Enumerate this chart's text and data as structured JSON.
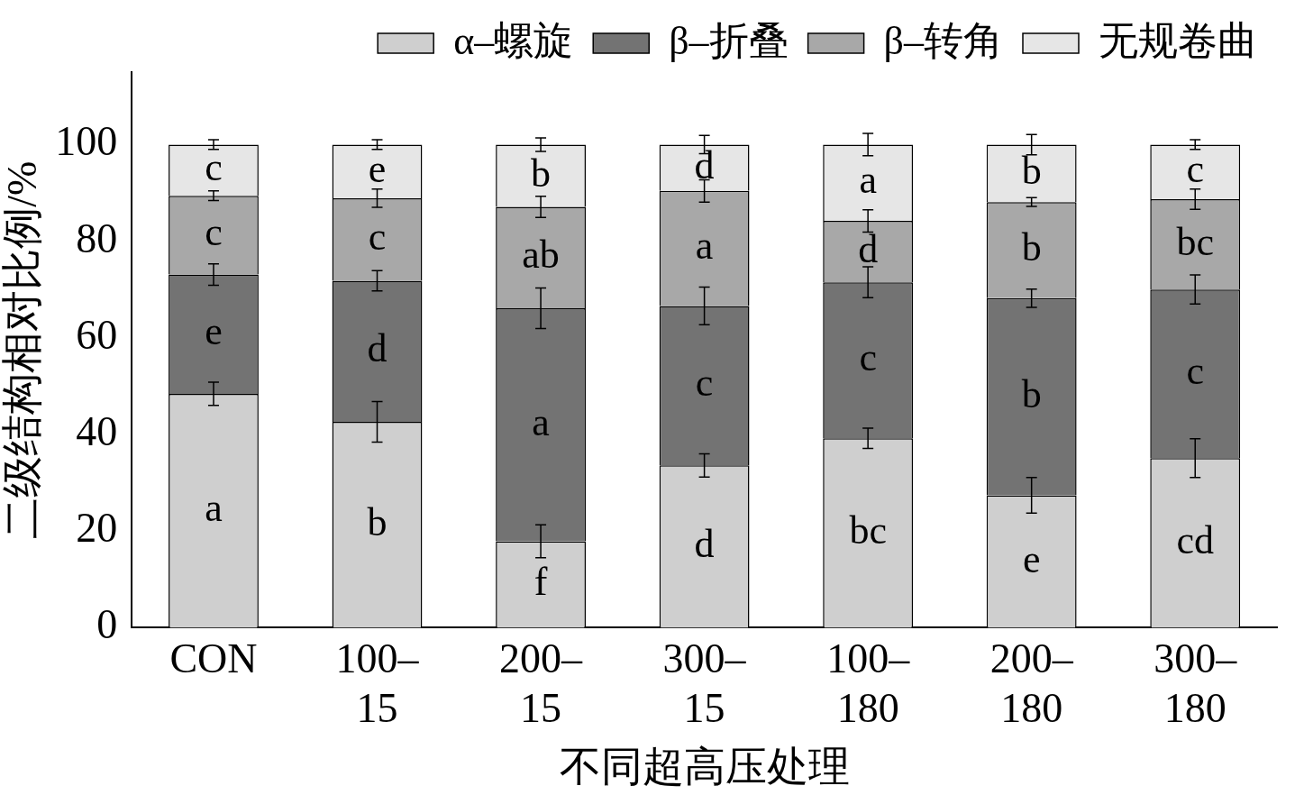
{
  "chart_data": {
    "type": "bar",
    "stacked": true,
    "xlabel": "不同超高压处理",
    "ylabel": "二级结构相对比例/%",
    "categories": [
      "CON",
      "100–15",
      "200–15",
      "300–15",
      "100–180",
      "200–180",
      "300–180"
    ],
    "ylim": [
      0,
      115
    ],
    "yticks": [
      0,
      20,
      40,
      60,
      80,
      100
    ],
    "grid": false,
    "legend": "top",
    "series": [
      {
        "name": "α–螺旋",
        "color": "#cfcfcf",
        "values": [
          48.4,
          42.6,
          17.9,
          33.6,
          39.2,
          27.4,
          35.1
        ],
        "errors": [
          2.4,
          4.2,
          3.4,
          2.4,
          2.1,
          3.7,
          4.0
        ],
        "value_labels": [
          "a",
          "b",
          "f",
          "d",
          "bc",
          "e",
          "cd"
        ]
      },
      {
        "name": "β–折叠",
        "color": "#737373",
        "values": [
          24.7,
          29.2,
          48.2,
          33.0,
          32.3,
          40.8,
          34.9
        ],
        "errors": [
          2.2,
          2.1,
          4.2,
          3.9,
          3.2,
          1.9,
          3.0
        ],
        "value_labels": [
          "e",
          "d",
          "a",
          "c",
          "c",
          "b",
          "c"
        ]
      },
      {
        "name": "β–转角",
        "color": "#a8a8a8",
        "values": [
          16.3,
          17.1,
          21.0,
          23.8,
          12.7,
          19.9,
          18.7
        ],
        "errors": [
          1.0,
          1.9,
          2.2,
          2.3,
          2.3,
          0.9,
          2.1
        ],
        "value_labels": [
          "c",
          "c",
          "ab",
          "a",
          "d",
          "b",
          "bc"
        ]
      },
      {
        "name": "无规卷曲",
        "color": "#e6e6e6",
        "values": [
          10.6,
          11.1,
          12.9,
          9.6,
          15.8,
          11.9,
          11.3
        ],
        "errors": [
          1.0,
          1.0,
          1.4,
          1.9,
          2.3,
          2.1,
          1.0
        ],
        "value_labels": [
          "c",
          "e",
          "b",
          "d",
          "a",
          "b",
          "c"
        ]
      }
    ]
  }
}
